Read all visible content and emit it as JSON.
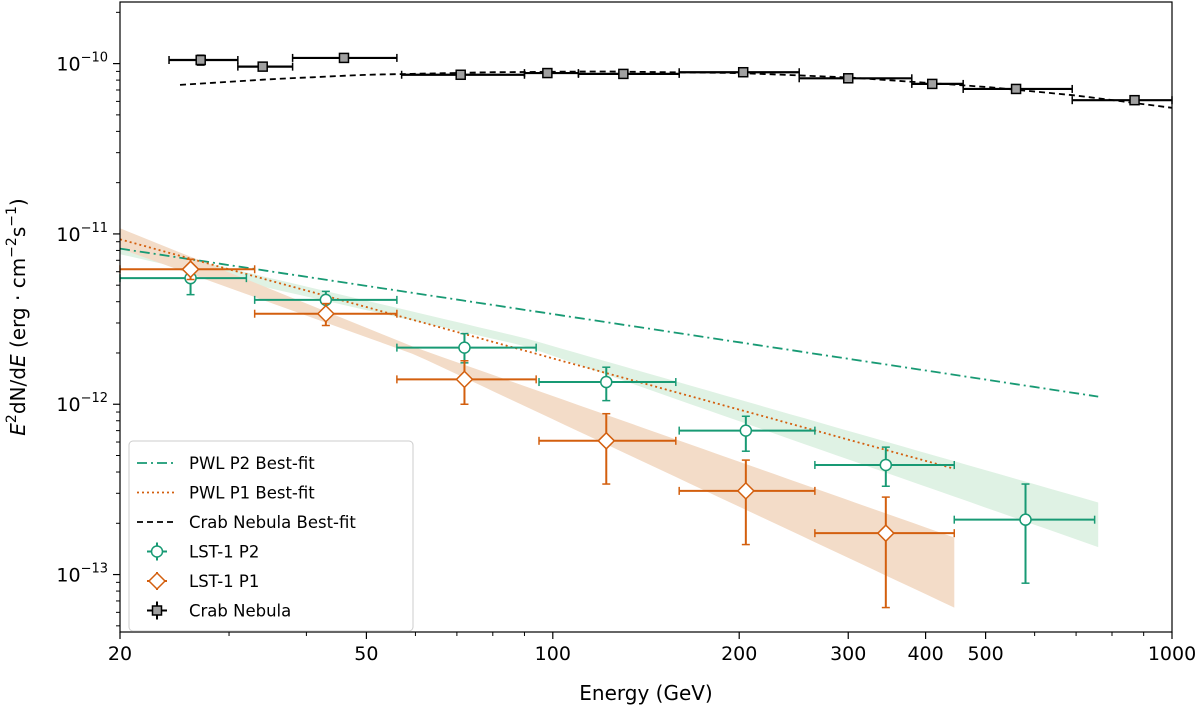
{
  "chart_data": {
    "type": "scatter",
    "title": "",
    "xlabel": "Energy (GeV)",
    "ylabel_parts": [
      "E",
      "2",
      "dN/d",
      "E",
      " (erg · cm",
      "−2",
      "s",
      "−1",
      ")"
    ],
    "xscale": "log",
    "yscale": "log",
    "xlim": [
      20,
      1000
    ],
    "ylim": [
      4.6e-14,
      2.3e-10
    ],
    "x_ticks": [
      {
        "value": 20,
        "label": "20"
      },
      {
        "value": 50,
        "label": "50"
      },
      {
        "value": 100,
        "label": "100"
      },
      {
        "value": 200,
        "label": "200"
      },
      {
        "value": 300,
        "label": "300"
      },
      {
        "value": 400,
        "label": "400"
      },
      {
        "value": 500,
        "label": "500"
      },
      {
        "value": 1000,
        "label": "1000"
      }
    ],
    "y_ticks": [
      {
        "value": 1e-10,
        "base": "10",
        "exp": "−10"
      },
      {
        "value": 1e-11,
        "base": "10",
        "exp": "−11"
      },
      {
        "value": 1e-12,
        "base": "10",
        "exp": "−12"
      },
      {
        "value": 1e-13,
        "base": "10",
        "exp": "−13"
      }
    ],
    "colors": {
      "p2": "#189a74",
      "p1": "#d35f0e",
      "crab": "#000000",
      "crab_marker": "#a0a0a0",
      "band_p2": "#dff2e4",
      "band_p1": "#f3dcc8"
    },
    "series": [
      {
        "name": "LST-1 P2",
        "marker": "circle",
        "color_key": "p2",
        "points": [
          {
            "x": 26,
            "y": 5.5e-12,
            "xlo": 20,
            "xhi": 32,
            "ylo": 4.4e-12,
            "yhi": 6.5e-12
          },
          {
            "x": 43,
            "y": 4.1e-12,
            "xlo": 33,
            "xhi": 56,
            "ylo": 3.5e-12,
            "yhi": 4.6e-12
          },
          {
            "x": 72,
            "y": 2.15e-12,
            "xlo": 56,
            "xhi": 94,
            "ylo": 1.75e-12,
            "yhi": 2.6e-12
          },
          {
            "x": 122,
            "y": 1.35e-12,
            "xlo": 95,
            "xhi": 158,
            "ylo": 1.05e-12,
            "yhi": 1.65e-12
          },
          {
            "x": 205,
            "y": 7e-13,
            "xlo": 160,
            "xhi": 265,
            "ylo": 5.3e-13,
            "yhi": 8.5e-13
          },
          {
            "x": 345,
            "y": 4.4e-13,
            "xlo": 265,
            "xhi": 445,
            "ylo": 3.3e-13,
            "yhi": 5.6e-13
          },
          {
            "x": 580,
            "y": 2.1e-13,
            "xlo": 445,
            "xhi": 750,
            "ylo": 8.9e-14,
            "yhi": 3.4e-13
          }
        ]
      },
      {
        "name": "LST-1 P1",
        "marker": "diamond",
        "color_key": "p1",
        "points": [
          {
            "x": 26,
            "y": 6.2e-12,
            "xlo": 20,
            "xhi": 33,
            "ylo": 5.4e-12,
            "yhi": 7.1e-12
          },
          {
            "x": 43,
            "y": 3.4e-12,
            "xlo": 33,
            "xhi": 56,
            "ylo": 2.9e-12,
            "yhi": 3.9e-12
          },
          {
            "x": 72,
            "y": 1.4e-12,
            "xlo": 56,
            "xhi": 94,
            "ylo": 1e-12,
            "yhi": 1.8e-12
          },
          {
            "x": 122,
            "y": 6.1e-13,
            "xlo": 95,
            "xhi": 158,
            "ylo": 3.4e-13,
            "yhi": 8.8e-13
          },
          {
            "x": 205,
            "y": 3.1e-13,
            "xlo": 160,
            "xhi": 265,
            "ylo": 1.5e-13,
            "yhi": 4.7e-13
          },
          {
            "x": 345,
            "y": 1.75e-13,
            "xlo": 265,
            "xhi": 445,
            "ylo": 6.4e-14,
            "yhi": 2.85e-13
          }
        ]
      },
      {
        "name": "Crab Nebula",
        "marker": "square",
        "color_key": "crab",
        "points": [
          {
            "x": 27,
            "y": 1.05e-10,
            "xlo": 24,
            "xhi": 31,
            "ylo": 9.8e-11,
            "yhi": 1.12e-10
          },
          {
            "x": 34,
            "y": 9.6e-11,
            "xlo": 31,
            "xhi": 38,
            "ylo": 9.2e-11,
            "yhi": 1e-10
          },
          {
            "x": 46,
            "y": 1.08e-10,
            "xlo": 38,
            "xhi": 56,
            "ylo": 1.05e-10,
            "yhi": 1.11e-10
          },
          {
            "x": 71,
            "y": 8.6e-11,
            "xlo": 57,
            "xhi": 90,
            "ylo": 8.4e-11,
            "yhi": 8.8e-11
          },
          {
            "x": 98,
            "y": 8.8e-11,
            "xlo": 90,
            "xhi": 110,
            "ylo": 8.6e-11,
            "yhi": 9e-11
          },
          {
            "x": 130,
            "y": 8.7e-11,
            "xlo": 110,
            "xhi": 160,
            "ylo": 8.5e-11,
            "yhi": 8.9e-11
          },
          {
            "x": 203,
            "y": 8.9e-11,
            "xlo": 160,
            "xhi": 250,
            "ylo": 8.7e-11,
            "yhi": 9.1e-11
          },
          {
            "x": 300,
            "y": 8.2e-11,
            "xlo": 250,
            "xhi": 380,
            "ylo": 8e-11,
            "yhi": 8.4e-11
          },
          {
            "x": 410,
            "y": 7.6e-11,
            "xlo": 380,
            "xhi": 460,
            "ylo": 7.4e-11,
            "yhi": 7.8e-11
          },
          {
            "x": 560,
            "y": 7.1e-11,
            "xlo": 460,
            "xhi": 690,
            "ylo": 6.9e-11,
            "yhi": 7.3e-11
          },
          {
            "x": 870,
            "y": 6.1e-11,
            "xlo": 690,
            "xhi": 1000,
            "ylo": 5.9e-11,
            "yhi": 6.3e-11
          }
        ]
      }
    ],
    "fits": [
      {
        "name": "PWL P2 Best-fit",
        "style": "dashdot",
        "color_key": "p2",
        "band_key": "band_p2",
        "x_range": [
          20,
          760
        ],
        "norm_x": 20,
        "norm_y": 8.2e-12,
        "index": 2.55,
        "band": [
          {
            "x": 20,
            "lo": 7.6e-12,
            "hi": 8.9e-12
          },
          {
            "x": 90,
            "lo": 2.2e-12,
            "hi": 2.45e-12
          },
          {
            "x": 760,
            "lo": 1.45e-13,
            "hi": 2.65e-13
          }
        ]
      },
      {
        "name": "PWL P1 Best-fit",
        "style": "dotted",
        "color_key": "p1",
        "band_key": "band_p1",
        "x_range": [
          20,
          445
        ],
        "norm_x": 20,
        "norm_y": 9.3e-12,
        "index": 3.0,
        "band": [
          {
            "x": 20,
            "lo": 8.2e-12,
            "hi": 1.08e-11
          },
          {
            "x": 60,
            "lo": 1.95e-12,
            "hi": 2.15e-12
          },
          {
            "x": 445,
            "lo": 6.4e-14,
            "hi": 1.65e-13
          }
        ]
      },
      {
        "name": "Crab Nebula Best-fit",
        "style": "dashed",
        "color_key": "crab",
        "x_range": [
          25,
          1000
        ],
        "curve": [
          {
            "x": 25,
            "y": 7.5e-11
          },
          {
            "x": 35,
            "y": 8.1e-11
          },
          {
            "x": 50,
            "y": 8.6e-11
          },
          {
            "x": 80,
            "y": 8.9e-11
          },
          {
            "x": 120,
            "y": 9e-11
          },
          {
            "x": 200,
            "y": 8.8e-11
          },
          {
            "x": 300,
            "y": 8.3e-11
          },
          {
            "x": 500,
            "y": 7.3e-11
          },
          {
            "x": 700,
            "y": 6.5e-11
          },
          {
            "x": 1000,
            "y": 5.5e-11
          }
        ]
      }
    ],
    "legend": {
      "location": "lower-left",
      "entries": [
        {
          "label": "PWL P2 Best-fit",
          "kind": "line",
          "style": "dashdot",
          "color_key": "p2"
        },
        {
          "label": "PWL P1 Best-fit",
          "kind": "line",
          "style": "dotted",
          "color_key": "p1"
        },
        {
          "label": "Crab Nebula Best-fit",
          "kind": "line",
          "style": "dashed",
          "color_key": "crab"
        },
        {
          "label": "LST-1 P2",
          "kind": "marker",
          "marker": "circle",
          "color_key": "p2"
        },
        {
          "label": "LST-1 P1",
          "kind": "marker",
          "marker": "diamond",
          "color_key": "p1"
        },
        {
          "label": "Crab Nebula",
          "kind": "marker",
          "marker": "square",
          "color_key": "crab"
        }
      ]
    }
  }
}
